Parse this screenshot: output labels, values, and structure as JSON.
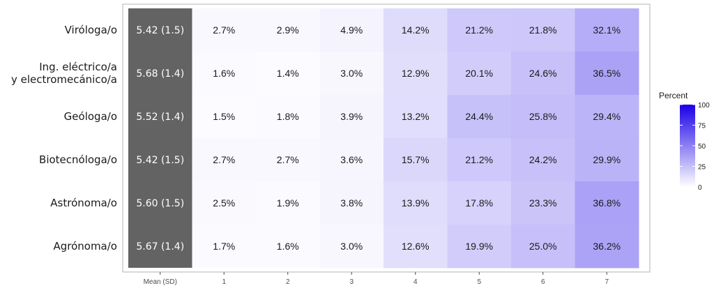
{
  "chart_data": {
    "type": "heatmap",
    "rows": [
      "Viróloga/o",
      "Ing. eléctrico/a\ny electromecánico/a",
      "Geóloga/o",
      "Biotecnóloga/o",
      "Astrónoma/o",
      "Agrónoma/o"
    ],
    "columns": [
      "Mean (SD)",
      "1",
      "2",
      "3",
      "4",
      "5",
      "6",
      "7"
    ],
    "mean_sd": [
      "5.42 (1.5)",
      "5.68 (1.4)",
      "5.52 (1.4)",
      "5.42 (1.5)",
      "5.60 (1.5)",
      "5.67 (1.4)"
    ],
    "values": [
      [
        2.7,
        2.9,
        4.9,
        14.2,
        21.2,
        21.8,
        32.1
      ],
      [
        1.6,
        1.4,
        3.0,
        12.9,
        20.1,
        24.6,
        36.5
      ],
      [
        1.5,
        1.8,
        3.9,
        13.2,
        24.4,
        25.8,
        29.4
      ],
      [
        2.7,
        2.7,
        3.6,
        15.7,
        21.2,
        24.2,
        29.9
      ],
      [
        2.5,
        1.9,
        3.8,
        13.9,
        17.8,
        23.3,
        36.8
      ],
      [
        1.7,
        1.6,
        3.0,
        12.6,
        19.9,
        25.0,
        36.2
      ]
    ],
    "legend": {
      "title": "Percent",
      "ticks": [
        100,
        75,
        50,
        25,
        0
      ],
      "range": [
        0,
        100
      ],
      "low_color": "#ffffff",
      "high_color": "#1a00e6"
    },
    "mean_column_color": "#636363"
  }
}
